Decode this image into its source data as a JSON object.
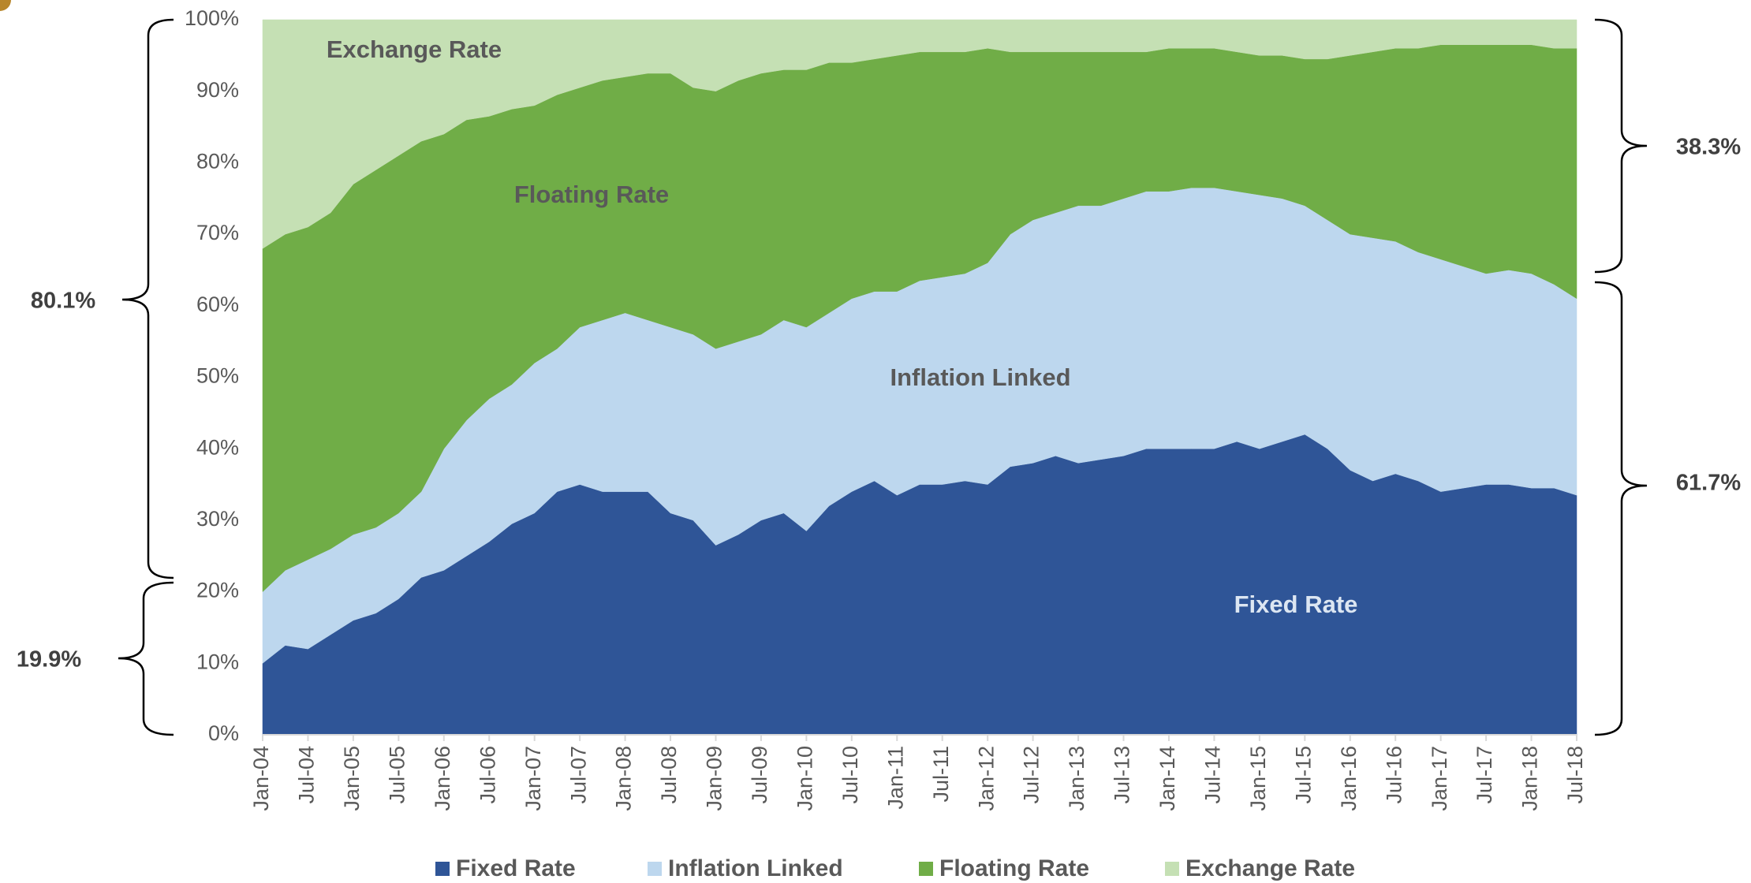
{
  "chart_data": {
    "type": "stacked_area",
    "categories": [
      "Jan-04",
      null,
      "Jul-04",
      null,
      "Jan-05",
      null,
      "Jul-05",
      null,
      "Jan-06",
      null,
      "Jul-06",
      null,
      "Jan-07",
      null,
      "Jul-07",
      null,
      "Jan-08",
      null,
      "Jul-08",
      null,
      "Jan-09",
      null,
      "Jul-09",
      null,
      "Jan-10",
      null,
      "Jul-10",
      null,
      "Jan-11",
      null,
      "Jul-11",
      null,
      "Jan-12",
      null,
      "Jul-12",
      null,
      "Jan-13",
      null,
      "Jul-13",
      null,
      "Jan-14",
      null,
      "Jul-14",
      null,
      "Jan-15",
      null,
      "Jul-15",
      null,
      "Jan-16",
      null,
      "Jul-16",
      null,
      "Jan-17",
      null,
      "Jul-17",
      null,
      "Jan-18",
      null,
      "Jul-18"
    ],
    "series": [
      {
        "name": "Fixed Rate",
        "color": "#2f5597",
        "values": [
          10,
          12.5,
          12,
          14,
          16,
          17,
          19,
          22,
          23,
          25,
          27,
          29.5,
          31,
          34,
          35,
          34,
          34,
          34,
          31,
          30,
          26.5,
          28,
          30,
          31,
          28.5,
          32,
          34,
          35.5,
          33.5,
          35,
          35,
          35.5,
          35,
          37.5,
          38,
          39,
          38,
          38.5,
          39,
          40,
          40,
          40,
          40,
          41,
          40,
          41,
          42,
          40,
          37,
          35.5,
          36.5,
          35.5,
          34,
          34.5,
          35,
          35,
          34.5,
          34.5,
          33.5
        ]
      },
      {
        "name": "Inflation Linked",
        "color": "#bdd7ee",
        "values": [
          10,
          10.5,
          12.5,
          12,
          12,
          12,
          12,
          12,
          17,
          19,
          20,
          19.5,
          21,
          20,
          22,
          24,
          25,
          24,
          26,
          26,
          27.5,
          27,
          26,
          27,
          28.5,
          27,
          27,
          26.5,
          28.5,
          28.5,
          29,
          29,
          31,
          32.5,
          34,
          34,
          36,
          35.5,
          36,
          36,
          36,
          36.5,
          36.5,
          35,
          35.5,
          34,
          32,
          32,
          33,
          34,
          32.5,
          32,
          32.5,
          31,
          29.5,
          30,
          30,
          28.5,
          27.5
        ]
      },
      {
        "name": "Floating Rate",
        "color": "#70ad47",
        "values": [
          48,
          47,
          46.5,
          47,
          49,
          50,
          50,
          49,
          44,
          42,
          39.5,
          38.5,
          36,
          35.5,
          33.5,
          33.5,
          33,
          34.5,
          35.5,
          34.5,
          36,
          36.5,
          36.5,
          35,
          36,
          35,
          33,
          32.5,
          33,
          32,
          31.5,
          31,
          30,
          25.5,
          23.5,
          22.5,
          21.5,
          21.5,
          20.5,
          19.5,
          20,
          19.5,
          19.5,
          19.5,
          19.5,
          20,
          20.5,
          22.5,
          25,
          26,
          27,
          28.5,
          30,
          31,
          32,
          31.5,
          32,
          33,
          35
        ]
      },
      {
        "name": "Exchange Rate",
        "color": "#c5e0b4",
        "values": [
          32,
          30,
          29,
          27,
          23,
          21,
          19,
          17,
          16,
          14,
          13.5,
          12.5,
          12,
          10.5,
          9.5,
          8.5,
          8,
          7.5,
          7.5,
          9.5,
          10,
          8.5,
          7.5,
          7,
          7,
          6,
          6,
          5.5,
          5,
          4.5,
          4.5,
          4.5,
          4,
          4.5,
          4.5,
          4.5,
          4.5,
          4.5,
          4.5,
          4.5,
          4,
          4,
          4,
          4.5,
          5,
          5,
          5.5,
          5.5,
          5,
          4.5,
          4,
          4,
          3.5,
          3.5,
          3.5,
          3.5,
          3.5,
          4,
          4
        ]
      }
    ],
    "ylim": [
      0,
      100
    ],
    "yticks": [
      {
        "value": 0,
        "label": "0%"
      },
      {
        "value": 10,
        "label": "10%"
      },
      {
        "value": 20,
        "label": "20%"
      },
      {
        "value": 30,
        "label": "30%"
      },
      {
        "value": 40,
        "label": "40%"
      },
      {
        "value": 50,
        "label": "50%"
      },
      {
        "value": 60,
        "label": "60%"
      },
      {
        "value": 70,
        "label": "70%"
      },
      {
        "value": 80,
        "label": "80%"
      },
      {
        "value": 90,
        "label": "90%"
      },
      {
        "value": 100,
        "label": "100%"
      }
    ],
    "grid": false,
    "legend": "bottom",
    "annotations": [
      "Exchange Rate",
      "Floating Rate",
      "Inflation Linked",
      "Fixed Rate"
    ],
    "brace_labels": [
      "80.1%",
      "19.9%",
      "38.3%",
      "61.7%"
    ]
  }
}
